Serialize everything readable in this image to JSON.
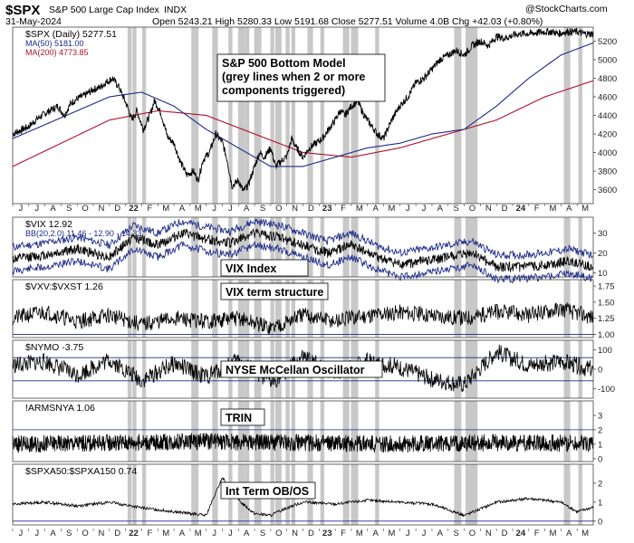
{
  "header": {
    "symbol": "$SPX",
    "name": "S&P 500 Large Cap Index",
    "exchange": "INDX",
    "date": "31-May-2024",
    "ohlc": "Open 5243.21  High 5280.33  Low 5191.68  Close 5277.51  Volume 4.0B  Chg +42.03 (+0.80%)",
    "watermark": "@StockCharts.com"
  },
  "colors": {
    "grey_band": "#c8c8c8",
    "price": "#000000",
    "ma50": "#1b2a8a",
    "ma200": "#b0102a",
    "bb": "#1b2a8a",
    "frame": "#444444"
  },
  "x_axis_labels": [
    "J",
    "J",
    "A",
    "S",
    "O",
    "N",
    "D",
    "22",
    "F",
    "M",
    "A",
    "M",
    "J",
    "J",
    "A",
    "S",
    "O",
    "N",
    "D",
    "23",
    "F",
    "M",
    "A",
    "M",
    "J",
    "J",
    "A",
    "S",
    "O",
    "N",
    "D",
    "24",
    "F",
    "M",
    "A",
    "M"
  ],
  "grey_band_months": [
    7.25,
    7.55,
    8.15,
    11.2,
    11.4,
    12.5,
    12.6,
    13.5,
    14.1,
    14.3,
    14.55,
    15.1,
    15.3,
    16.1,
    16.4,
    16.55,
    17.05,
    17.4,
    18.4,
    18.5,
    19.2,
    20.6,
    20.75,
    21.1,
    21.3,
    22.6,
    27.5,
    27.7,
    28.2,
    28.4,
    28.55,
    28.7,
    34.3,
    34.45,
    35.2
  ],
  "panels": [
    {
      "id": "spx",
      "legend": [
        "$SPX (Daily) 5277.51",
        "MA(50) 5181.00",
        "MA(200) 4773.85"
      ],
      "annotation": [
        "S&P 500 Bottom Model",
        "(grey lines when 2 or more",
        "components triggered)"
      ],
      "yticks": [
        3600,
        3800,
        4000,
        4200,
        4400,
        4600,
        4800,
        5000,
        5200
      ]
    },
    {
      "id": "vix",
      "legend": [
        "$VIX 12.92",
        "BB(20,2.0) 11.46 - 12.90 - 14.33"
      ],
      "annotation": [
        "VIX Index"
      ],
      "yticks": [
        10,
        20,
        30
      ]
    },
    {
      "id": "vxv",
      "legend": [
        "$VXV:$VXST 1.26"
      ],
      "annotation": [
        "VIX term structure"
      ],
      "yticks": [
        1.0,
        1.25,
        1.5,
        1.75
      ],
      "yticks_text": [
        "1.00",
        "1.25",
        "1.50",
        "1.75"
      ]
    },
    {
      "id": "nymo",
      "legend": [
        "$NYMO -3.75"
      ],
      "annotation": [
        "NYSE McCellan Oscillator"
      ],
      "yticks": [
        -100,
        0,
        100
      ]
    },
    {
      "id": "trin",
      "legend": [
        "!ARMSNYA 1.06"
      ],
      "annotation": [
        "TRIN"
      ],
      "yticks": [
        0,
        1,
        2,
        3
      ]
    },
    {
      "id": "obos",
      "legend": [
        "$SPXA50:$SPXA150 0.74"
      ],
      "annotation": [
        "Int Term OB/OS"
      ],
      "yticks": [
        0,
        1,
        2
      ]
    }
  ],
  "chart_data": {
    "type": "line",
    "title": "$SPX S&P 500 Large Cap Index INDX — S&P 500 Bottom Model",
    "x_unit": "months since 2021-06-01",
    "x_range": [
      0,
      36
    ],
    "series": [
      {
        "name": "$SPX (Daily)",
        "ylim": [
          3450,
          5350
        ],
        "x": [
          0,
          1,
          1.5,
          2,
          2.8,
          3.2,
          3.6,
          4,
          4.5,
          5,
          5.4,
          5.8,
          6.2,
          6.6,
          7.1,
          7.4,
          7.7,
          8.1,
          8.5,
          8.8,
          9.2,
          9.6,
          10,
          10.4,
          10.8,
          11.2,
          11.5,
          11.8,
          12.2,
          12.6,
          13,
          13.3,
          13.6,
          14.0,
          14.3,
          14.6,
          15.0,
          15.3,
          15.6,
          16.0,
          16.3,
          16.6,
          17.0,
          17.3,
          17.6,
          18.0,
          18.4,
          18.8,
          19.2,
          19.6,
          20.0,
          20.3,
          20.6,
          21.0,
          21.4,
          21.8,
          22.2,
          22.6,
          23.0,
          23.5,
          24.0,
          24.5,
          25.0,
          25.5,
          26.0,
          26.5,
          27.0,
          27.5,
          28.0,
          28.5,
          29.0,
          29.5,
          30.0,
          30.5,
          31.0,
          31.5,
          32.0,
          32.5,
          33.0,
          33.5,
          33.8,
          34.1,
          34.4,
          34.7,
          35.0,
          35.4,
          35.8,
          36.0
        ],
        "values": [
          4200,
          4280,
          4360,
          4420,
          4500,
          4400,
          4530,
          4580,
          4620,
          4680,
          4700,
          4760,
          4800,
          4700,
          4500,
          4350,
          4450,
          4250,
          4400,
          4560,
          4420,
          4170,
          4100,
          3900,
          3760,
          3800,
          3700,
          3920,
          4000,
          4200,
          4110,
          3920,
          3640,
          3700,
          3580,
          3650,
          3850,
          4000,
          3950,
          4050,
          3850,
          3900,
          3960,
          4150,
          4050,
          3950,
          4050,
          4100,
          4150,
          4250,
          4350,
          4450,
          4400,
          4500,
          4550,
          4400,
          4300,
          4200,
          4150,
          4350,
          4500,
          4600,
          4750,
          4800,
          4900,
          5000,
          5050,
          5100,
          5050,
          5150,
          5200,
          5150,
          5250,
          5230,
          5260,
          5280,
          5280,
          5290,
          5300,
          5300,
          5280,
          5290,
          5300,
          5300,
          5300,
          5280,
          5278,
          5277
        ]
      },
      {
        "name": "MA(50)",
        "x": [
          0,
          2,
          4,
          6,
          8,
          10,
          12,
          14,
          16,
          18,
          20,
          22,
          24,
          26,
          28,
          30,
          32,
          34,
          36
        ],
        "values": [
          4150,
          4300,
          4450,
          4600,
          4650,
          4500,
          4250,
          4050,
          3850,
          3850,
          3950,
          4050,
          4100,
          4200,
          4250,
          4500,
          4800,
          5050,
          5181
        ]
      },
      {
        "name": "MA(200)",
        "x": [
          0,
          3,
          6,
          9,
          12,
          15,
          18,
          21,
          24,
          27,
          30,
          33,
          36
        ],
        "values": [
          3850,
          4100,
          4350,
          4450,
          4400,
          4200,
          4000,
          3950,
          4050,
          4200,
          4350,
          4600,
          4774
        ]
      },
      {
        "name": "$VIX",
        "ylim": [
          8,
          38
        ],
        "x": [
          0,
          2,
          4,
          6,
          7.5,
          9,
          10.5,
          12,
          13.5,
          15,
          16.5,
          18,
          19.5,
          21,
          22.5,
          24,
          25.5,
          27,
          28.5,
          30,
          31.5,
          33,
          34.5,
          36
        ],
        "values": [
          17,
          19,
          22,
          18,
          28,
          24,
          30,
          27,
          25,
          30,
          28,
          24,
          20,
          24,
          18,
          14,
          16,
          18,
          20,
          13,
          13,
          14,
          16,
          12.9
        ]
      },
      {
        "name": "$VXV:$VXST",
        "ylim": [
          0.95,
          1.85
        ],
        "x": [
          0,
          2,
          4,
          6,
          8,
          10,
          12,
          14,
          16,
          18,
          20,
          22,
          24,
          26,
          28,
          30,
          32,
          34,
          36
        ],
        "values": [
          1.25,
          1.35,
          1.2,
          1.3,
          1.15,
          1.25,
          1.2,
          1.25,
          1.1,
          1.3,
          1.2,
          1.3,
          1.35,
          1.3,
          1.25,
          1.35,
          1.3,
          1.4,
          1.26
        ]
      },
      {
        "name": "$NYMO",
        "ylim": [
          -150,
          150
        ],
        "x": [
          0,
          2,
          4,
          6,
          8,
          10,
          12,
          14,
          16,
          18,
          20,
          22,
          24,
          26,
          28,
          30,
          32,
          34,
          36
        ],
        "values": [
          20,
          40,
          -30,
          50,
          -60,
          30,
          -40,
          50,
          -70,
          60,
          -20,
          40,
          10,
          -50,
          -80,
          90,
          20,
          40,
          -3.75
        ]
      },
      {
        "name": "!ARMSNYA",
        "ylim": [
          -0.2,
          4
        ],
        "x": [
          0,
          6,
          12,
          18,
          24,
          30,
          36
        ],
        "values": [
          1.0,
          1.1,
          1.2,
          1.1,
          1.0,
          1.1,
          1.06
        ]
      },
      {
        "name": "$SPXA50:$SPXA150",
        "ylim": [
          -0.2,
          3.0
        ],
        "x": [
          0,
          2,
          4,
          6,
          8,
          10,
          12,
          13,
          14,
          15,
          16,
          17,
          18,
          20,
          22,
          24,
          26,
          28,
          30,
          32,
          34,
          35,
          36
        ],
        "values": [
          0.9,
          1.0,
          0.8,
          1.0,
          0.7,
          0.5,
          0.3,
          2.3,
          1.1,
          0.4,
          0.3,
          0.7,
          1.0,
          0.9,
          1.1,
          1.0,
          0.9,
          0.3,
          1.0,
          1.2,
          1.0,
          0.5,
          0.74
        ]
      }
    ]
  }
}
